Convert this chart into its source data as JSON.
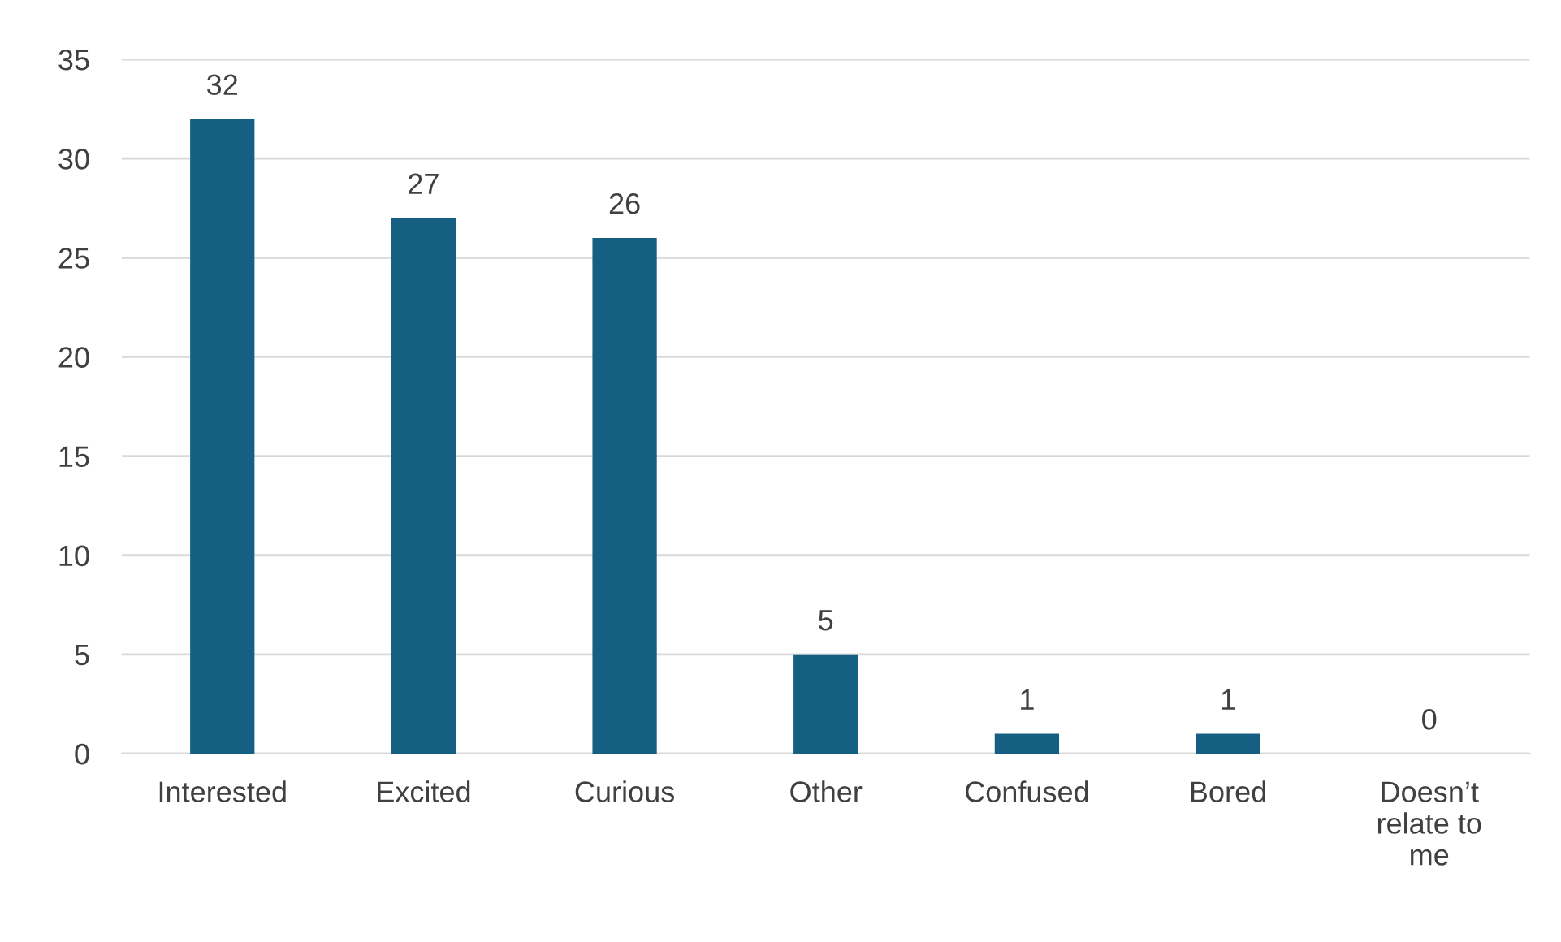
{
  "chart_data": {
    "type": "bar",
    "categories": [
      "Interested",
      "Excited",
      "Curious",
      "Other",
      "Confused",
      "Bored",
      "Doesn’t\nrelate to\nme"
    ],
    "values": [
      32,
      27,
      26,
      5,
      1,
      1,
      0
    ],
    "color": "#156082",
    "ylim": [
      0,
      35
    ],
    "yticks": [
      0,
      5,
      10,
      15,
      20,
      25,
      30,
      35
    ],
    "grid": "y",
    "data_labels": true
  }
}
